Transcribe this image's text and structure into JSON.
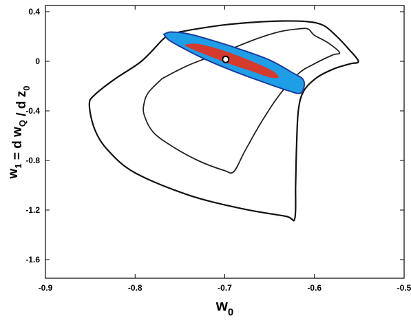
{
  "chart_data": {
    "type": "scatter",
    "title": "",
    "xlabel": "w0",
    "xlabel_parts": {
      "base": "w",
      "sub": "0"
    },
    "ylabel_parts": [
      {
        "text": "w",
        "sub": "1"
      },
      {
        "text": " = d w",
        "sub": "Q"
      },
      {
        "text": " / d z",
        "sub": "0"
      }
    ],
    "xlim": [
      -0.9,
      -0.5
    ],
    "ylim": [
      -1.75,
      0.45
    ],
    "x_ticks": [
      -0.9,
      -0.8,
      -0.7,
      -0.6,
      -0.5
    ],
    "x_tick_labels": [
      "-0.9",
      "-0.8",
      "-0.7",
      "-0.6",
      "-0.5"
    ],
    "y_ticks": [
      0.4,
      0.0,
      -0.4,
      -0.8,
      -1.2,
      -1.6
    ],
    "y_tick_labels": [
      "0.4",
      "0",
      "-0.4",
      "-0.8",
      "-1.2",
      "-1.6"
    ],
    "grid": false,
    "colors": {
      "outer_contour": "#111111",
      "inner_contour": "#222222",
      "blue_region": "#1f9ee8",
      "blue_edge": "#1c3d9c",
      "red_region": "#d63a2c",
      "marker_fill": "#ffffff",
      "marker_edge": "#000000"
    },
    "series": [
      {
        "kind": "contour",
        "role": "outer",
        "points": [
          [
            -0.762,
            0.22
          ],
          [
            -0.734,
            0.258
          ],
          [
            -0.7,
            0.294
          ],
          [
            -0.665,
            0.316
          ],
          [
            -0.635,
            0.325
          ],
          [
            -0.608,
            0.32
          ],
          [
            -0.59,
            0.29
          ],
          [
            -0.575,
            0.2
          ],
          [
            -0.562,
            0.1
          ],
          [
            -0.551,
            0.0
          ],
          [
            -0.56,
            -0.02
          ],
          [
            -0.578,
            -0.06
          ],
          [
            -0.597,
            -0.13
          ],
          [
            -0.612,
            -0.24
          ],
          [
            -0.618,
            -0.4
          ],
          [
            -0.62,
            -0.7
          ],
          [
            -0.621,
            -1.0
          ],
          [
            -0.622,
            -1.27
          ],
          [
            -0.632,
            -1.25
          ],
          [
            -0.68,
            -1.19
          ],
          [
            -0.74,
            -1.08
          ],
          [
            -0.8,
            -0.9
          ],
          [
            -0.83,
            -0.72
          ],
          [
            -0.845,
            -0.55
          ],
          [
            -0.851,
            -0.35
          ],
          [
            -0.845,
            -0.27
          ],
          [
            -0.822,
            -0.14
          ],
          [
            -0.793,
            0.0
          ],
          [
            -0.77,
            0.17
          ],
          [
            -0.762,
            0.22
          ]
        ]
      },
      {
        "kind": "contour",
        "role": "inner",
        "points": [
          [
            -0.77,
            -0.14
          ],
          [
            -0.74,
            -0.03
          ],
          [
            -0.7,
            0.08
          ],
          [
            -0.665,
            0.18
          ],
          [
            -0.638,
            0.24
          ],
          [
            -0.617,
            0.262
          ],
          [
            -0.607,
            0.26
          ],
          [
            -0.6,
            0.21
          ],
          [
            -0.585,
            0.15
          ],
          [
            -0.572,
            0.07
          ],
          [
            -0.58,
            0.05
          ],
          [
            -0.6,
            -0.02
          ],
          [
            -0.618,
            -0.1
          ],
          [
            -0.64,
            -0.28
          ],
          [
            -0.66,
            -0.5
          ],
          [
            -0.678,
            -0.73
          ],
          [
            -0.69,
            -0.89
          ],
          [
            -0.701,
            -0.88
          ],
          [
            -0.73,
            -0.8
          ],
          [
            -0.76,
            -0.68
          ],
          [
            -0.78,
            -0.57
          ],
          [
            -0.79,
            -0.43
          ],
          [
            -0.79,
            -0.34
          ],
          [
            -0.785,
            -0.25
          ],
          [
            -0.77,
            -0.14
          ]
        ]
      },
      {
        "kind": "region",
        "role": "blue",
        "points": [
          [
            -0.768,
            0.218
          ],
          [
            -0.76,
            0.236
          ],
          [
            -0.74,
            0.22
          ],
          [
            -0.71,
            0.16
          ],
          [
            -0.68,
            0.09
          ],
          [
            -0.65,
            0.01
          ],
          [
            -0.625,
            -0.09
          ],
          [
            -0.612,
            -0.155
          ],
          [
            -0.615,
            -0.255
          ],
          [
            -0.63,
            -0.235
          ],
          [
            -0.66,
            -0.16
          ],
          [
            -0.69,
            -0.08
          ],
          [
            -0.72,
            0.01
          ],
          [
            -0.745,
            0.1
          ],
          [
            -0.762,
            0.17
          ],
          [
            -0.768,
            0.218
          ]
        ]
      },
      {
        "kind": "region",
        "role": "red",
        "points": [
          [
            -0.745,
            0.135
          ],
          [
            -0.73,
            0.14
          ],
          [
            -0.705,
            0.095
          ],
          [
            -0.68,
            0.03
          ],
          [
            -0.66,
            -0.03
          ],
          [
            -0.645,
            -0.085
          ],
          [
            -0.64,
            -0.13
          ],
          [
            -0.65,
            -0.13
          ],
          [
            -0.67,
            -0.08
          ],
          [
            -0.695,
            -0.02
          ],
          [
            -0.72,
            0.05
          ],
          [
            -0.74,
            0.11
          ],
          [
            -0.745,
            0.135
          ]
        ]
      },
      {
        "kind": "marker",
        "role": "best-fit",
        "points": [
          [
            -0.699,
            0.015
          ]
        ]
      }
    ]
  }
}
